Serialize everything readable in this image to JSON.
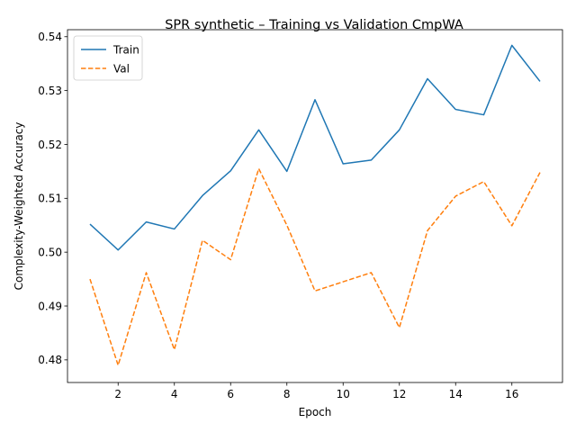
{
  "chart_data": {
    "type": "line",
    "title": "SPR synthetic – Training vs Validation CmpWA",
    "xlabel": "Epoch",
    "ylabel": "Complexity-Weighted Accuracy",
    "x": [
      1,
      2,
      3,
      4,
      5,
      6,
      7,
      8,
      9,
      10,
      11,
      12,
      13,
      14,
      15,
      16,
      17
    ],
    "xlim": [
      0.2,
      17.8
    ],
    "ylim": [
      0.4758,
      0.5413
    ],
    "x_ticks": [
      2,
      4,
      6,
      8,
      10,
      12,
      14,
      16
    ],
    "y_ticks": [
      0.48,
      0.49,
      0.5,
      0.51,
      0.52,
      0.53,
      0.54
    ],
    "x_tick_labels": [
      "2",
      "4",
      "6",
      "8",
      "10",
      "12",
      "14",
      "16"
    ],
    "y_tick_labels": [
      "0.48",
      "0.49",
      "0.50",
      "0.51",
      "0.52",
      "0.53",
      "0.54"
    ],
    "grid": false,
    "legend_position": "top-left",
    "series": [
      {
        "name": "Train",
        "color": "#1f77b4",
        "style": "solid",
        "values": [
          0.5052,
          0.5004,
          0.5056,
          0.5043,
          0.5105,
          0.5151,
          0.5227,
          0.515,
          0.5283,
          0.5164,
          0.5171,
          0.5227,
          0.5322,
          0.5265,
          0.5255,
          0.5384,
          0.5317
        ]
      },
      {
        "name": "Val",
        "color": "#ff7f0e",
        "style": "dashed",
        "values": [
          0.495,
          0.479,
          0.4962,
          0.4819,
          0.5022,
          0.4986,
          0.5155,
          0.505,
          0.4928,
          0.4945,
          0.4962,
          0.486,
          0.504,
          0.5104,
          0.5131,
          0.5049,
          0.5148
        ]
      }
    ]
  }
}
